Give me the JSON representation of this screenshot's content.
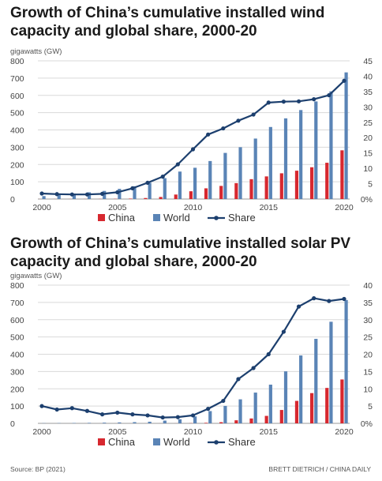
{
  "footer": {
    "source": "Source: BP (2021)",
    "credit": "BRETT DIETRICH  / CHINA DAILY"
  },
  "colors": {
    "china": "#d7282f",
    "world": "#5a84b6",
    "share": "#1c3f6e",
    "grid": "#d9d9d9"
  },
  "chart_data": [
    {
      "type": "bar",
      "title": "Growth of China’s cumulative installed wind capacity and global share, 2000-20",
      "unit_label": "gigawatts (GW)",
      "x": [
        2000,
        2001,
        2002,
        2003,
        2004,
        2005,
        2006,
        2007,
        2008,
        2009,
        2010,
        2011,
        2012,
        2013,
        2014,
        2015,
        2016,
        2017,
        2018,
        2019,
        2020
      ],
      "x_tick_labels": [
        "2000",
        "2005",
        "2010",
        "2015",
        "2020"
      ],
      "ylim": [
        0,
        800
      ],
      "y_ticks": [
        0,
        100,
        200,
        300,
        400,
        500,
        600,
        700,
        800
      ],
      "y2lim": [
        0,
        45
      ],
      "y2_ticks": [
        "0%",
        "5",
        "10",
        "15",
        "20",
        "25",
        "30",
        "35",
        "40",
        "45"
      ],
      "legend": [
        "China",
        "World",
        "Share"
      ],
      "legend_position": "bottom",
      "grid": true,
      "series": [
        {
          "name": "China",
          "type": "bar",
          "axis": "left",
          "values": [
            0.3,
            0.4,
            0.5,
            0.6,
            0.8,
            1.3,
            2.6,
            5.9,
            12,
            26,
            45,
            62,
            76,
            92,
            115,
            131,
            149,
            164,
            184,
            210,
            282
          ]
        },
        {
          "name": "World",
          "type": "bar",
          "axis": "left",
          "values": [
            17,
            24,
            31,
            39,
            47,
            59,
            74,
            94,
            121,
            159,
            181,
            220,
            267,
            300,
            350,
            417,
            467,
            515,
            565,
            623,
            733
          ]
        },
        {
          "name": "Share",
          "type": "line",
          "axis": "right",
          "values": [
            1.8,
            1.6,
            1.5,
            1.5,
            1.7,
            2.2,
            3.5,
            5.3,
            7.3,
            11.3,
            16.2,
            21,
            23,
            25.5,
            27.5,
            31.4,
            31.7,
            31.8,
            32.5,
            33.8,
            38.5
          ]
        }
      ]
    },
    {
      "type": "bar",
      "title": "Growth of China’s cumulative installed solar PV capacity and global share, 2000-20",
      "unit_label": "gigawatts (GW)",
      "x": [
        2000,
        2001,
        2002,
        2003,
        2004,
        2005,
        2006,
        2007,
        2008,
        2009,
        2010,
        2011,
        2012,
        2013,
        2014,
        2015,
        2016,
        2017,
        2018,
        2019,
        2020
      ],
      "x_tick_labels": [
        "2000",
        "2005",
        "2010",
        "2015",
        "2020"
      ],
      "ylim": [
        0,
        800
      ],
      "y_ticks": [
        0,
        100,
        200,
        300,
        400,
        500,
        600,
        700,
        800
      ],
      "y2lim": [
        0,
        40
      ],
      "y2_ticks": [
        "0%",
        "5",
        "10",
        "15",
        "20",
        "25",
        "30",
        "35",
        "40"
      ],
      "legend": [
        "China",
        "World",
        "Share"
      ],
      "legend_position": "bottom",
      "grid": true,
      "series": [
        {
          "name": "China",
          "type": "bar",
          "axis": "left",
          "values": [
            0.02,
            0.03,
            0.04,
            0.05,
            0.06,
            0.07,
            0.08,
            0.1,
            0.14,
            0.3,
            0.9,
            3.1,
            6.7,
            17.7,
            28.2,
            43.2,
            77.4,
            130,
            175,
            205,
            254
          ]
        },
        {
          "name": "World",
          "type": "bar",
          "axis": "left",
          "values": [
            1.2,
            1.6,
            2.2,
            2.9,
            4,
            5.4,
            7,
            9.4,
            15.8,
            23.6,
            40.4,
            71,
            101,
            139,
            178,
            224,
            301,
            393,
            489,
            588,
            714
          ]
        },
        {
          "name": "Share",
          "type": "line",
          "axis": "right",
          "values": [
            5,
            4,
            4.4,
            3.6,
            2.6,
            3.1,
            2.6,
            2.3,
            1.7,
            1.8,
            2.3,
            4.2,
            6.5,
            12.8,
            16,
            20,
            26.5,
            33.8,
            36.2,
            35.4,
            36
          ]
        }
      ]
    }
  ]
}
